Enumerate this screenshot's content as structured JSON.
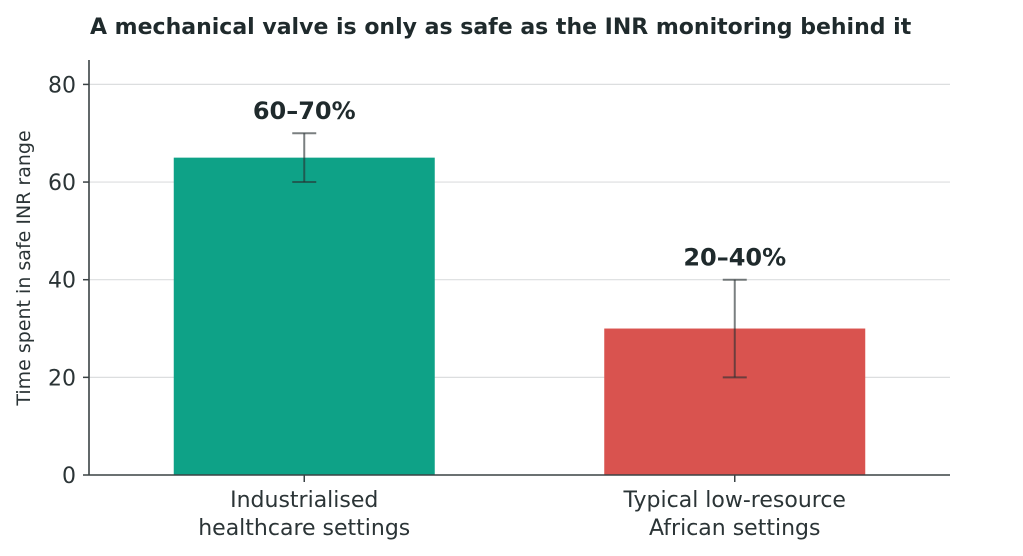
{
  "chart_data": {
    "type": "bar",
    "title": "A mechanical valve is only as safe as the INR monitoring behind it",
    "xlabel": "",
    "ylabel": "Time spent in safe INR range",
    "ylim": [
      0,
      85
    ],
    "yticks": [
      0,
      20,
      40,
      60,
      80
    ],
    "grid": true,
    "categories": [
      [
        "Industrialised",
        "healthcare settings"
      ],
      [
        "Typical low-resource",
        "African settings"
      ]
    ],
    "values": [
      65,
      30
    ],
    "error_ranges": [
      [
        60,
        70
      ],
      [
        20,
        40
      ]
    ],
    "data_labels": [
      "60–70%",
      "20–40%"
    ],
    "colors": [
      "#0ea287",
      "#d9534f"
    ]
  }
}
